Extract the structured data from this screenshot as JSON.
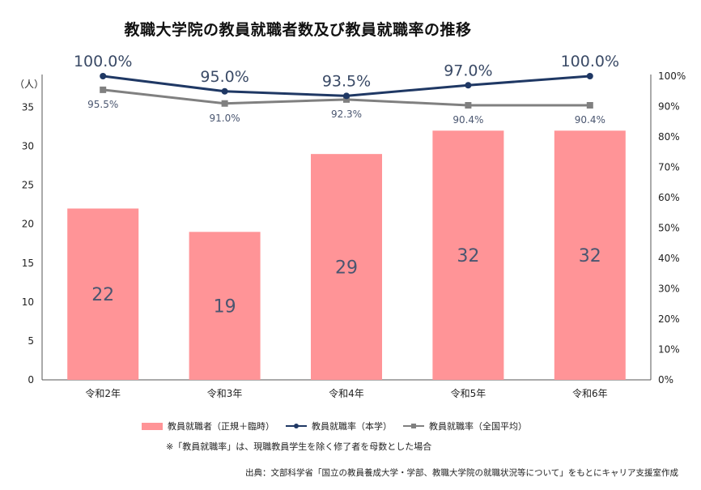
{
  "title": "教職大学院の教員就職者数及び教員就職率の推移",
  "left_unit": "（人）",
  "note": "※「教員就職率」は、現職教員学生を除く修了者を母数とした場合",
  "source": "出典：文部科学省「国立の教員養成大学・学部、教職大学院の就職状況等について」をもとにキャリア支援室作成",
  "colors": {
    "bar": "#ff9497",
    "bar_label": "#4a5670",
    "rate_self": "#1f3864",
    "rate_national": "#808080",
    "axis": "#555555"
  },
  "legend": [
    {
      "label": "教員就職者（正規＋臨時）",
      "kind": "bar",
      "color": "#ff9497"
    },
    {
      "label": "教員就職率（本学）",
      "kind": "line",
      "color": "#1f3864"
    },
    {
      "label": "教員就職率（全国平均）",
      "kind": "line",
      "color": "#808080"
    }
  ],
  "chart_data": {
    "type": "bar",
    "categories": [
      "令和2年",
      "令和3年",
      "令和4年",
      "令和5年",
      "令和6年"
    ],
    "series": [
      {
        "name": "教員就職者（正規＋臨時）",
        "type": "bar",
        "axis": "left",
        "values": [
          22,
          19,
          29,
          32,
          32
        ],
        "labels": [
          "22",
          "19",
          "29",
          "32",
          "32"
        ]
      },
      {
        "name": "教員就職率（本学）",
        "type": "line",
        "axis": "right",
        "values": [
          100.0,
          95.0,
          93.5,
          97.0,
          100.0
        ],
        "labels": [
          "100.0%",
          "95.0%",
          "93.5%",
          "97.0%",
          "100.0%"
        ]
      },
      {
        "name": "教員就職率（全国平均）",
        "type": "line",
        "axis": "right",
        "values": [
          95.5,
          91.0,
          92.3,
          90.4,
          90.4
        ],
        "labels": [
          "95.5%",
          "91.0%",
          "92.3%",
          "90.4%",
          "90.4%"
        ]
      }
    ],
    "left_axis": {
      "ticks": [
        "0",
        "5",
        "10",
        "15",
        "20",
        "25",
        "30",
        "35"
      ],
      "range": [
        0,
        39
      ]
    },
    "right_axis": {
      "ticks": [
        "0%",
        "10%",
        "20%",
        "30%",
        "40%",
        "50%",
        "60%",
        "70%",
        "80%",
        "90%",
        "100%"
      ],
      "range": [
        0,
        100
      ]
    },
    "legend_position": "bottom"
  }
}
